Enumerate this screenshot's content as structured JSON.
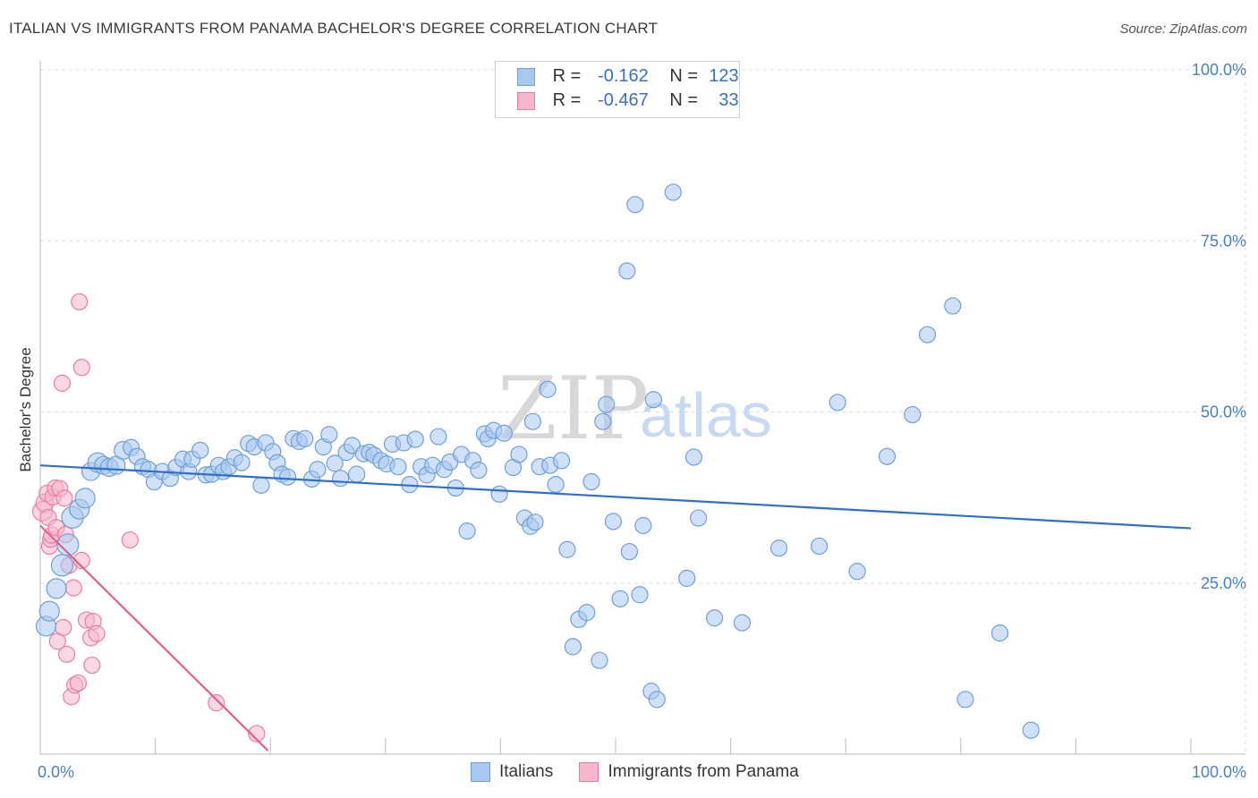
{
  "title": "ITALIAN VS IMMIGRANTS FROM PANAMA BACHELOR'S DEGREE CORRELATION CHART",
  "source": "Source: ZipAtlas.com",
  "watermark": {
    "zip": "ZIP",
    "atlas": "atlas"
  },
  "legend": {
    "rows": [
      {
        "r_label": "R =",
        "r_value": "-0.162",
        "n_label": "N =",
        "n_value": "123"
      },
      {
        "r_label": "R =",
        "r_value": "-0.467",
        "n_label": "N =",
        "n_value": "33"
      }
    ]
  },
  "colors": {
    "italians_fill": "#a9c8f0",
    "italians_stroke": "#6e9fd8",
    "italians_line": "#2f6fcb",
    "panama_fill": "#f6b6cb",
    "panama_stroke": "#e87fa1",
    "panama_line": "#e0608e",
    "grid": "#dddddd",
    "axis_text": "#4a7fc4"
  },
  "chart_data": {
    "type": "scatter",
    "xlabel": "",
    "ylabel": "Bachelor's Degree",
    "xlim": [
      0,
      100
    ],
    "ylim": [
      0,
      100
    ],
    "x_tick_labels": [
      "0.0%",
      "100.0%"
    ],
    "y_ticks": [
      25,
      50,
      75,
      100
    ],
    "y_tick_labels": [
      "25.0%",
      "50.0%",
      "75.0%",
      "100.0%"
    ],
    "grid": true,
    "legend_position": "top-center",
    "series": [
      {
        "name": "Italians",
        "trend": {
          "x0": 0,
          "y0": 42.2,
          "x1": 100,
          "y1": 33.0
        },
        "points": [
          [
            0.5,
            18.7,
            11
          ],
          [
            0.8,
            20.9,
            11
          ],
          [
            1.4,
            24.2,
            11
          ],
          [
            1.9,
            27.6,
            12
          ],
          [
            2.4,
            30.6,
            12
          ],
          [
            2.8,
            34.6,
            12
          ],
          [
            3.4,
            35.8,
            11
          ],
          [
            3.9,
            37.4,
            11
          ],
          [
            4.4,
            41.3,
            10
          ],
          [
            5.0,
            42.6,
            11
          ],
          [
            5.5,
            42.2,
            10
          ],
          [
            6.0,
            41.9,
            10
          ],
          [
            6.6,
            42.2,
            10
          ],
          [
            7.2,
            44.4,
            10
          ],
          [
            7.9,
            44.8,
            9
          ],
          [
            8.4,
            43.5,
            9
          ],
          [
            8.9,
            42.0,
            9
          ],
          [
            9.4,
            41.6,
            9
          ],
          [
            9.9,
            39.8,
            9
          ],
          [
            10.6,
            41.3,
            9
          ],
          [
            11.3,
            40.3,
            9
          ],
          [
            11.8,
            41.9,
            9
          ],
          [
            12.4,
            43.1,
            9
          ],
          [
            12.9,
            41.3,
            9
          ],
          [
            13.2,
            43.1,
            9
          ],
          [
            13.9,
            44.4,
            9
          ],
          [
            14.4,
            40.8,
            9
          ],
          [
            14.9,
            40.9,
            9
          ],
          [
            15.5,
            42.2,
            9
          ],
          [
            15.9,
            41.3,
            9
          ],
          [
            16.4,
            42.0,
            9
          ],
          [
            16.9,
            43.3,
            9
          ],
          [
            17.5,
            42.6,
            9
          ],
          [
            18.1,
            45.4,
            9
          ],
          [
            18.6,
            44.9,
            9
          ],
          [
            19.2,
            39.3,
            9
          ],
          [
            19.6,
            45.5,
            9
          ],
          [
            20.2,
            44.2,
            9
          ],
          [
            20.6,
            42.6,
            9
          ],
          [
            21.0,
            40.9,
            9
          ],
          [
            21.5,
            40.5,
            9
          ],
          [
            22.0,
            46.1,
            9
          ],
          [
            22.5,
            45.7,
            9
          ],
          [
            23.0,
            46.1,
            9
          ],
          [
            23.6,
            40.2,
            9
          ],
          [
            24.1,
            41.6,
            9
          ],
          [
            24.6,
            44.9,
            9
          ],
          [
            25.1,
            46.7,
            9
          ],
          [
            25.6,
            42.5,
            9
          ],
          [
            26.1,
            40.3,
            9
          ],
          [
            26.6,
            44.1,
            9
          ],
          [
            27.1,
            45.1,
            9
          ],
          [
            27.5,
            40.9,
            9
          ],
          [
            28.1,
            43.9,
            9
          ],
          [
            28.6,
            44.1,
            9
          ],
          [
            29.0,
            43.7,
            9
          ],
          [
            29.6,
            42.9,
            9
          ],
          [
            30.1,
            42.4,
            9
          ],
          [
            30.6,
            45.3,
            9
          ],
          [
            31.1,
            42.0,
            9
          ],
          [
            31.6,
            45.5,
            9
          ],
          [
            32.1,
            39.4,
            9
          ],
          [
            32.6,
            46.0,
            9
          ],
          [
            33.1,
            42.0,
            9
          ],
          [
            33.6,
            40.8,
            9
          ],
          [
            34.1,
            42.2,
            9
          ],
          [
            34.6,
            46.4,
            9
          ],
          [
            35.1,
            41.6,
            9
          ],
          [
            35.6,
            42.7,
            9
          ],
          [
            36.1,
            38.9,
            9
          ],
          [
            36.6,
            43.8,
            9
          ],
          [
            37.1,
            32.6,
            9
          ],
          [
            37.6,
            42.9,
            9
          ],
          [
            38.1,
            41.5,
            9
          ],
          [
            38.6,
            46.8,
            9
          ],
          [
            38.9,
            46.1,
            9
          ],
          [
            39.4,
            47.3,
            9
          ],
          [
            39.9,
            38.0,
            9
          ],
          [
            40.3,
            46.9,
            9
          ],
          [
            41.1,
            41.9,
            9
          ],
          [
            41.6,
            43.8,
            9
          ],
          [
            42.1,
            34.5,
            9
          ],
          [
            42.6,
            33.3,
            9
          ],
          [
            43.0,
            33.9,
            9
          ],
          [
            42.8,
            48.6,
            9
          ],
          [
            43.4,
            42.0,
            9
          ],
          [
            44.1,
            53.3,
            9
          ],
          [
            44.3,
            42.2,
            9
          ],
          [
            44.8,
            39.4,
            9
          ],
          [
            45.3,
            42.9,
            9
          ],
          [
            45.8,
            29.9,
            9
          ],
          [
            46.3,
            15.7,
            9
          ],
          [
            46.8,
            19.7,
            9
          ],
          [
            47.5,
            20.7,
            9
          ],
          [
            47.9,
            39.8,
            9
          ],
          [
            48.6,
            13.7,
            9
          ],
          [
            48.9,
            48.6,
            9
          ],
          [
            49.2,
            51.1,
            9
          ],
          [
            49.8,
            34.0,
            9
          ],
          [
            50.4,
            22.7,
            9
          ],
          [
            51.0,
            70.6,
            9
          ],
          [
            51.2,
            29.6,
            9
          ],
          [
            51.7,
            80.3,
            9
          ],
          [
            52.1,
            23.3,
            9
          ],
          [
            52.4,
            33.4,
            9
          ],
          [
            53.1,
            9.2,
            9
          ],
          [
            53.3,
            51.8,
            9
          ],
          [
            53.6,
            8.0,
            9
          ],
          [
            55.0,
            82.1,
            9
          ],
          [
            56.2,
            25.7,
            9
          ],
          [
            56.8,
            43.4,
            9
          ],
          [
            57.2,
            34.5,
            9
          ],
          [
            58.6,
            19.9,
            9
          ],
          [
            61.0,
            19.2,
            9
          ],
          [
            64.2,
            30.1,
            9
          ],
          [
            67.7,
            30.4,
            9
          ],
          [
            69.3,
            51.4,
            9
          ],
          [
            71.0,
            26.7,
            9
          ],
          [
            73.6,
            43.5,
            9
          ],
          [
            75.8,
            49.6,
            9
          ],
          [
            77.1,
            61.3,
            9
          ],
          [
            79.3,
            65.5,
            9
          ],
          [
            80.4,
            8.0,
            9
          ],
          [
            83.4,
            17.7,
            9
          ],
          [
            86.1,
            3.5,
            9
          ]
        ]
      },
      {
        "name": "Immigrants from Panama",
        "trend": {
          "x0": 0,
          "y0": 33.4,
          "x1": 19.8,
          "y1": 0.5
        },
        "points": [
          [
            0.2,
            35.5,
            11
          ],
          [
            0.4,
            36.7,
            10
          ],
          [
            0.6,
            38.1,
            9
          ],
          [
            0.7,
            34.6,
            9
          ],
          [
            0.8,
            30.4,
            9
          ],
          [
            0.9,
            31.4,
            9
          ],
          [
            1.0,
            32.0,
            9
          ],
          [
            1.1,
            37.6,
            9
          ],
          [
            1.3,
            38.9,
            9
          ],
          [
            1.4,
            33.1,
            9
          ],
          [
            1.5,
            16.5,
            9
          ],
          [
            1.7,
            38.8,
            9
          ],
          [
            1.9,
            54.2,
            9
          ],
          [
            2.0,
            18.5,
            9
          ],
          [
            2.1,
            37.4,
            9
          ],
          [
            2.2,
            32.1,
            9
          ],
          [
            2.3,
            14.6,
            9
          ],
          [
            2.5,
            27.6,
            9
          ],
          [
            2.7,
            8.4,
            9
          ],
          [
            2.9,
            24.3,
            9
          ],
          [
            3.0,
            10.1,
            9
          ],
          [
            3.3,
            10.4,
            9
          ],
          [
            3.4,
            66.1,
            9
          ],
          [
            3.6,
            56.5,
            9
          ],
          [
            3.6,
            28.3,
            9
          ],
          [
            4.0,
            19.6,
            9
          ],
          [
            4.4,
            17.0,
            9
          ],
          [
            4.5,
            13.0,
            9
          ],
          [
            4.6,
            19.4,
            9
          ],
          [
            4.9,
            17.6,
            9
          ],
          [
            7.8,
            31.3,
            9
          ],
          [
            15.3,
            7.5,
            9
          ],
          [
            18.8,
            3.0,
            9
          ]
        ]
      }
    ]
  },
  "bottom_legend": [
    {
      "label": "Italians"
    },
    {
      "label": "Immigrants from Panama"
    }
  ]
}
